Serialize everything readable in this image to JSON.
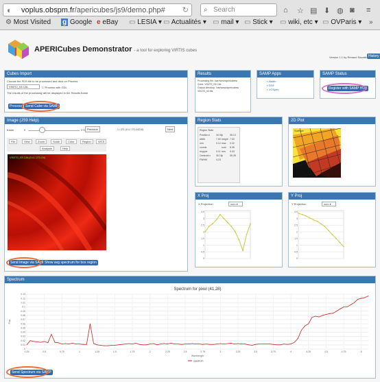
{
  "browser": {
    "url_host": "voplus.obspm.fr",
    "url_path": "/apericubes/js9/demo.php#",
    "search_placeholder": "Search",
    "bookmarks": [
      {
        "label": "Most Visited",
        "icon": "gear-icon"
      },
      {
        "label": "Google",
        "icon": "google-icon"
      },
      {
        "label": "eBay",
        "icon": "ebay-icon"
      },
      {
        "label": "LESIA",
        "icon": "folder-icon"
      },
      {
        "label": "Actualités",
        "icon": "folder-icon"
      },
      {
        "label": "mail",
        "icon": "folder-icon"
      },
      {
        "label": "Stick",
        "icon": "folder-icon"
      },
      {
        "label": "wiki, etc",
        "icon": "folder-icon"
      },
      {
        "label": "OVParis",
        "icon": "folder-icon"
      }
    ]
  },
  "app": {
    "title": "APERICubes Demonstrator",
    "subtitle": "- a tool for exploring VIRTIS cubes",
    "version": "Version 1.1 by Renaud Savalle",
    "history_label": "History"
  },
  "panels": {
    "cube_import": "Cubes Import",
    "results": "Results",
    "samp_apps": "SAMP Apps",
    "samp_status": "SAMP Status",
    "image": "Image (JS9 Help)",
    "region_stats": "Region Stats",
    "plot2d": "2D Plot",
    "xproj": "X Proj",
    "yproj": "Y Proj",
    "spectrum": "Spectrum"
  },
  "cube_import": {
    "text1": "Choose the PDS file to be processed and click on Process",
    "select_value": "VI0272_03.CAL",
    "check_label": "Process with GDL",
    "text2": "The results of the processing will be displayed in the Results frame",
    "process": "Process",
    "send_samp": "Send Cube via SAMP"
  },
  "results": {
    "lines": [
      "Processing file: /var/www/apericubes/",
      "Output directory: /var/www/apericubes/",
      "Cube: VI0272_03.CAL",
      "VI0272_03.fits"
    ]
  },
  "samp_apps": [
    "Aladin",
    "DS9",
    "VOSpec"
  ],
  "samp_status": {
    "register": "Register with SAMP HUB"
  },
  "image": {
    "frame_label": "frame",
    "frame_value": "0",
    "frame_max": "271",
    "previous": "Previous",
    "next": "Next",
    "frame_info": "1 / 271 (0.4 / 271.04210)",
    "tools": [
      "File",
      "View",
      "Zoom",
      "Scale",
      "Color",
      "Region",
      "WCS",
      "Analysis",
      "Help"
    ],
    "overlay": "VI0272_03.CAL(0.4 / 271.04)",
    "send_image": "Send Image via SAMP",
    "show_spec": "Show avg spectrum for box region"
  },
  "region_stats": {
    "title": "Region Stats",
    "rows": [
      [
        "Position:x",
        "30.00",
        "y",
        "36.13"
      ],
      [
        "width",
        "7.60",
        "height",
        "7.60"
      ],
      [
        "min",
        "0.12",
        "max",
        "0.32"
      ],
      [
        "counts",
        "",
        "sum",
        "6.06"
      ],
      [
        "Avg/pix",
        "0.11",
        "rms",
        "0.03"
      ],
      [
        "Centroid:x",
        "30.19",
        "y",
        "36.28"
      ],
      [
        "FWHM",
        "4.23",
        "",
        ""
      ]
    ]
  },
  "plot2d": {
    "label": "Surface"
  },
  "xproj": {
    "label": "X Projection",
    "select": "sum"
  },
  "yproj": {
    "label": "Y Projection",
    "select": "sum"
  },
  "spectrum": {
    "title": "Spectrum for pixel (41,28)",
    "xlabel": "Wavelength",
    "ylabel": "Flux",
    "legend": "spectrum",
    "send": "Send Spectrum via SAMP"
  },
  "chart_data": [
    {
      "type": "line",
      "title": "Spectrum for pixel (41,28)",
      "xlabel": "Wavelength",
      "ylabel": "Flux",
      "series": [
        {
          "name": "spectrum",
          "x": [
            0.25,
            0.3,
            0.35,
            0.4,
            0.45,
            0.5,
            0.55,
            0.6,
            0.65,
            0.7,
            0.75,
            0.8,
            0.85,
            0.9,
            0.95,
            1.0,
            1.05,
            1.1,
            1.15,
            1.2,
            1.25,
            1.3,
            1.35,
            1.4,
            1.45,
            1.5,
            1.55,
            1.6,
            1.65,
            1.7,
            1.75,
            1.8,
            1.85,
            1.9,
            1.95,
            2.0,
            2.05,
            2.1,
            2.15,
            2.2,
            2.25,
            2.3,
            2.35,
            2.4,
            2.45,
            2.5,
            2.55,
            2.6,
            2.65,
            2.7,
            2.75,
            2.8,
            2.85,
            2.9,
            2.95,
            3.0,
            3.05,
            3.1,
            3.15,
            3.2,
            3.25,
            3.3,
            3.35,
            3.4,
            3.45,
            3.5,
            3.55,
            3.6,
            3.65,
            3.7,
            3.75,
            3.8,
            3.85,
            3.9,
            3.95,
            4.0,
            4.05,
            4.1,
            4.15,
            4.2,
            4.25,
            4.3,
            4.35,
            4.4,
            4.45,
            4.5,
            4.55,
            4.6,
            4.65,
            4.7,
            4.75,
            4.8,
            4.85,
            4.9,
            4.95,
            5.0,
            5.05,
            5.1
          ],
          "values": [
            0.01,
            0.02,
            0.018,
            0.017,
            0.016,
            0.018,
            0.015,
            0.035,
            0.016,
            0.015,
            0.012,
            0.013,
            0.012,
            0.014,
            0.012,
            0.012,
            0.011,
            0.011,
            0.06,
            0.013,
            0.01,
            0.009,
            0.008,
            0.008,
            0.009,
            0.009,
            0.01,
            0.011,
            0.012,
            0.013,
            0.012,
            0.014,
            0.011,
            0.01,
            0.01,
            0.012,
            0.013,
            0.01,
            0.012,
            0.013,
            0.012,
            0.014,
            0.012,
            0.012,
            0.011,
            0.012,
            0.012,
            0.013,
            0.012,
            0.012,
            0.011,
            0.012,
            0.011,
            0.011,
            0.012,
            0.013,
            0.012,
            0.013,
            0.014,
            0.012,
            0.013,
            0.012,
            0.012,
            0.01,
            0.009,
            0.011,
            0.012,
            0.012,
            0.012,
            0.012,
            0.011,
            0.01,
            0.01,
            0.012,
            0.011,
            0.012,
            0.016,
            0.025,
            0.045,
            0.055,
            0.06,
            0.075,
            0.078,
            0.076,
            0.08,
            0.082,
            0.084,
            0.085,
            0.09,
            0.095,
            0.1,
            0.1,
            0.105,
            0.11,
            0.118,
            0.12,
            0.122,
            0.126
          ]
        }
      ],
      "ylim": [
        0,
        0.13
      ],
      "yticks": [
        "0",
        "0.01",
        "0.02",
        "0.03",
        "0.04",
        "0.05",
        "0.06",
        "0.07",
        "0.08",
        "0.09",
        "0.1",
        "0.11",
        "0.12",
        "0.13"
      ],
      "xticks": [
        "0.25",
        "0.5",
        "0.75",
        "1",
        "1.25",
        "1.5",
        "1.75",
        "2",
        "2.25",
        "2.5",
        "2.75",
        "3",
        "3.25",
        "3.5",
        "3.75",
        "4",
        "4.25",
        "4.5",
        "4.75",
        "5"
      ],
      "grid": true,
      "legend": "bottom"
    },
    {
      "type": "line",
      "title": "X Projection",
      "series": [
        {
          "name": "X Projection",
          "values": [
            2.0,
            2.4,
            2.6,
            2.9,
            3.3,
            3.0,
            2.7,
            2.4,
            2.0,
            1.4,
            0.6,
            1.8,
            2.6
          ]
        }
      ],
      "ylim": [
        0,
        3.6
      ],
      "yticks": [
        "0",
        "0.5",
        "1",
        "1.5",
        "2",
        "2.5",
        "3",
        "3.5"
      ],
      "grid": true
    },
    {
      "type": "line",
      "title": "Y Projection",
      "series": [
        {
          "name": "Y Projection",
          "values": [
            3.4,
            3.3,
            3.2,
            3.05,
            2.9,
            2.8,
            2.6,
            2.4,
            2.1,
            1.8,
            1.5,
            1.2,
            0.9
          ]
        }
      ],
      "ylim": [
        0,
        3.6
      ],
      "yticks": [
        "0",
        "0.5",
        "1",
        "1.5",
        "2",
        "2.5",
        "3",
        "3.5"
      ],
      "grid": true
    }
  ],
  "colors": {
    "accent": "#3c76b0",
    "highlight": "#ef6a37",
    "samp_highlight": "#d36ec7",
    "plot_line": "#c9cc44",
    "spectrum_line": "#cc2020"
  }
}
